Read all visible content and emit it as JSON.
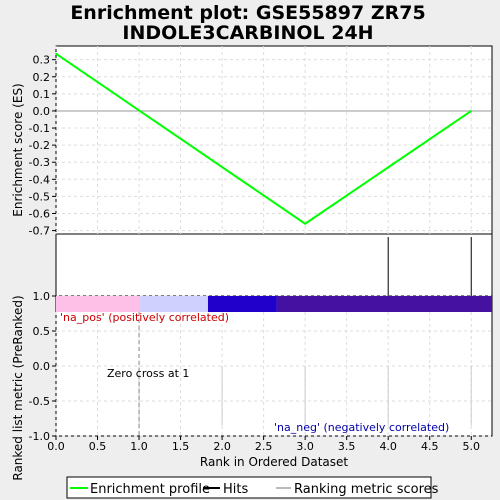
{
  "title_line1": "Enrichment plot: GSE55897 ZR75",
  "title_line2": "INDOLE3CARBINOL 24H",
  "chart_data": {
    "type": "line",
    "x_label": "Rank in Ordered Dataset",
    "es_panel": {
      "ylabel": "Enrichment score (ES)",
      "ylim": [
        -0.72,
        0.38
      ],
      "yticks": [
        "0.3",
        "0.2",
        "0.1",
        "0.0",
        "-0.1",
        "-0.2",
        "-0.3",
        "-0.4",
        "-0.5",
        "-0.6",
        "-0.7"
      ],
      "yvals": [
        0.3,
        0.2,
        0.1,
        0.0,
        -0.1,
        -0.2,
        -0.3,
        -0.4,
        -0.5,
        -0.6,
        -0.7
      ],
      "grid": true,
      "series": [
        {
          "color": "#00ff00",
          "x": [
            0,
            3,
            5
          ],
          "y": [
            0.335,
            -0.66,
            0.0
          ]
        }
      ]
    },
    "hits": {
      "x": [
        0,
        4,
        5
      ]
    },
    "rank_bar": {
      "segments": [
        {
          "from": 0.0,
          "to": 1.0,
          "color": "#ffc0e8"
        },
        {
          "from": 1.0,
          "to": 1.83,
          "color": "#d0d0ff"
        },
        {
          "from": 1.83,
          "to": 2.66,
          "color": "#2200cc"
        },
        {
          "from": 2.66,
          "to": 5.25,
          "color": "#4411a0"
        }
      ]
    },
    "metric_panel": {
      "ylabel": "Ranked list metric (PreRanked)",
      "ylim": [
        -1.0,
        1.0
      ],
      "yticks": [
        "1.0",
        "0.5",
        "0.0",
        "-0.5",
        "-1.0"
      ],
      "yvals": [
        1.0,
        0.5,
        0.0,
        -0.5,
        -1.0
      ],
      "grid": true,
      "metric_x": [
        1,
        2,
        3,
        4,
        5
      ],
      "zero_cross_x": 1,
      "zero_cross_label": "Zero cross at 1",
      "pos_label": "'na_pos' (positively correlated)",
      "neg_label": "'na_neg' (negatively correlated)",
      "pos_color": "#cc0000",
      "neg_color": "#0000aa"
    },
    "xlim": [
      0,
      5.25
    ],
    "xticks": [
      "0.0",
      "0.5",
      "1.0",
      "1.5",
      "2.0",
      "2.5",
      "3.0",
      "3.5",
      "4.0",
      "4.5",
      "5.0"
    ],
    "xvals": [
      0,
      0.5,
      1.0,
      1.5,
      2.0,
      2.5,
      3.0,
      3.5,
      4.0,
      4.5,
      5.0
    ],
    "legend": {
      "placement": "bottom",
      "items": [
        "Enrichment profile",
        "Hits",
        "Ranking metric scores"
      ],
      "colors": [
        "#00ff00",
        "#000000",
        "#bbbbbb"
      ]
    }
  }
}
